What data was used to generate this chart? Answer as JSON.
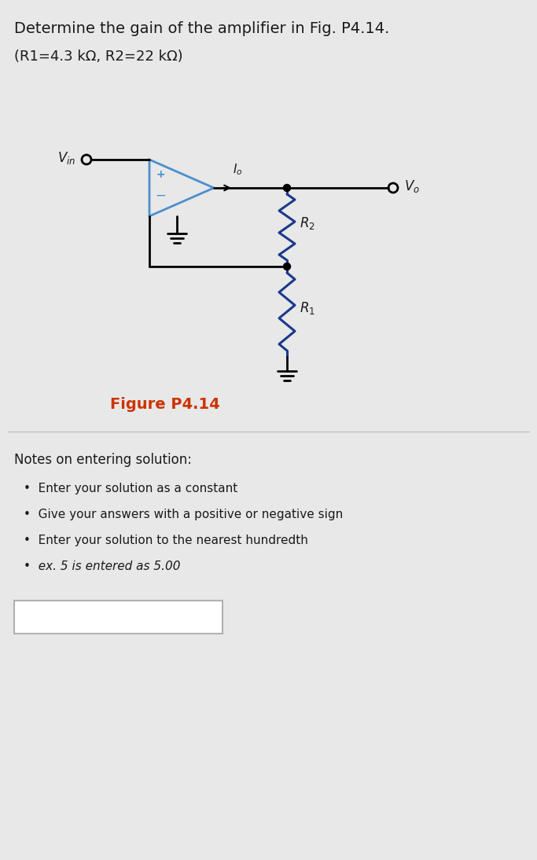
{
  "title_line1": "Determine the gain of the amplifier in Fig. P4.14.",
  "title_line2": "(R1=4.3 kΩ, R2=22 kΩ)",
  "figure_label": "Figure P4.14",
  "figure_label_color": "#cc3300",
  "bg_color": "#e8e8e8",
  "circuit_color": "#000000",
  "opamp_color": "#4d8fcc",
  "resistor_color": "#1a3a8a",
  "notes_title": "Notes on entering solution:",
  "notes_bullets": [
    "Enter your solution as a constant",
    "Give your answers with a positive or negative sign",
    "Enter your solution to the nearest hundredth",
    "ex. 5 is entered as 5.00"
  ],
  "notes_italic_index": 3,
  "text_color": "#1a1a1a",
  "title_fontsize": 14,
  "subtitle_fontsize": 13,
  "notes_title_fontsize": 12,
  "notes_bullet_fontsize": 11,
  "figure_label_fontsize": 14
}
